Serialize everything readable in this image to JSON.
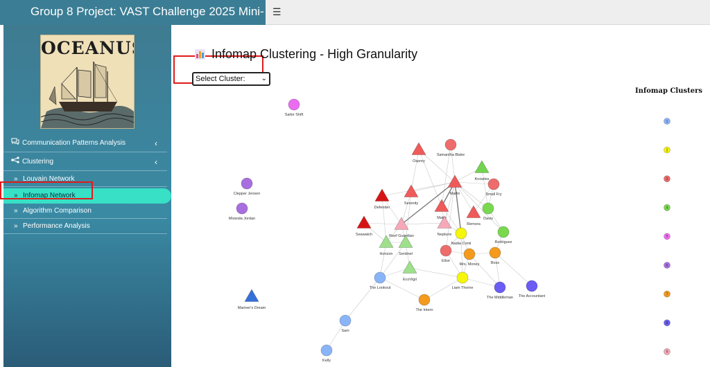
{
  "app": {
    "title": "Group 8 Project: VAST Challenge 2025 Mini-"
  },
  "logo": {
    "text": "OCEANUS"
  },
  "sidebar": {
    "items": [
      {
        "label": "Communication Patterns Analysis",
        "icon": "comments-icon"
      },
      {
        "label": "Clustering",
        "icon": "share-nodes-icon"
      }
    ],
    "subitems": [
      {
        "label": "Louvain Network"
      },
      {
        "label": "Infomap Network"
      },
      {
        "label": "Algorithm Comparison"
      },
      {
        "label": "Performance Analysis"
      }
    ]
  },
  "main": {
    "title": "Infomap Clustering - High Granularity",
    "select_label": "Select Cluster:"
  },
  "legend": {
    "title": "Infomap Clusters",
    "items": [
      {
        "label": "1",
        "color": "#8ab4f8"
      },
      {
        "label": "2",
        "color": "#f6f60a"
      },
      {
        "label": "3",
        "color": "#f16a6a"
      },
      {
        "label": "4",
        "color": "#79d94e"
      },
      {
        "label": "5",
        "color": "#f36bf5"
      },
      {
        "label": "6",
        "color": "#a86ee0"
      },
      {
        "label": "7",
        "color": "#f49a1c"
      },
      {
        "label": "8",
        "color": "#6a5cf5"
      },
      {
        "label": "9",
        "color": "#f7a8b8"
      }
    ]
  },
  "network": {
    "nodes": [
      {
        "id": "Sailor Shift",
        "shape": "circle",
        "color": "#ea6cf0"
      },
      {
        "id": "Clepper Jensen",
        "shape": "circle",
        "color": "#a86ee0"
      },
      {
        "id": "Miranda Jordan",
        "shape": "circle",
        "color": "#a86ee0"
      },
      {
        "id": "Mariner's Dream",
        "shape": "triangle",
        "color": "#3570d8"
      },
      {
        "id": "Osprey",
        "shape": "triangle",
        "color": "#ef5a5a"
      },
      {
        "id": "Samantha Blake",
        "shape": "circle",
        "color": "#ef6c6c"
      },
      {
        "id": "Knowles",
        "shape": "triangle",
        "color": "#73d44e"
      },
      {
        "id": "Small Fry",
        "shape": "circle",
        "color": "#ef6c6c"
      },
      {
        "id": "Mako",
        "shape": "triangle",
        "color": "#ef5a5a"
      },
      {
        "id": "Defender",
        "shape": "triangle",
        "color": "#d71414"
      },
      {
        "id": "Serenity",
        "shape": "triangle",
        "color": "#ef5a5a"
      },
      {
        "id": "Davis",
        "shape": "circle",
        "color": "#79d94e"
      },
      {
        "id": "Remora",
        "shape": "triangle",
        "color": "#ef5a5a"
      },
      {
        "id": "Seawatch",
        "shape": "triangle",
        "color": "#d71414"
      },
      {
        "id": "Reef Guardian",
        "shape": "triangle",
        "color": "#f7a8b8"
      },
      {
        "id": "Neptune",
        "shape": "triangle",
        "color": "#f7a8b8"
      },
      {
        "id": "Nadia Conti",
        "shape": "circle",
        "color": "#f6f60a"
      },
      {
        "id": "Rodriguez",
        "shape": "circle",
        "color": "#79d94e"
      },
      {
        "id": "Horizon",
        "shape": "triangle",
        "color": "#9ee08c"
      },
      {
        "id": "Sentinel",
        "shape": "triangle",
        "color": "#9ee08c"
      },
      {
        "id": "Elise",
        "shape": "circle",
        "color": "#ef6c6c"
      },
      {
        "id": "Mrs. Money",
        "shape": "circle",
        "color": "#f49a1c"
      },
      {
        "id": "Boss",
        "shape": "circle",
        "color": "#f49a1c"
      },
      {
        "id": "EcoVigil",
        "shape": "triangle",
        "color": "#9ee08c"
      },
      {
        "id": "The Lookout",
        "shape": "circle",
        "color": "#8ab4f8"
      },
      {
        "id": "Liam Thorne",
        "shape": "circle",
        "color": "#f6f60a"
      },
      {
        "id": "The Middleman",
        "shape": "circle",
        "color": "#6a5cf5"
      },
      {
        "id": "The Accountant",
        "shape": "circle",
        "color": "#6a5cf5"
      },
      {
        "id": "The Intern",
        "shape": "circle",
        "color": "#f49a1c"
      },
      {
        "id": "Sam",
        "shape": "circle",
        "color": "#8ab4f8"
      },
      {
        "id": "Kelly",
        "shape": "circle",
        "color": "#8ab4f8"
      }
    ],
    "hub": {
      "id": "Marlin",
      "shape": "triangle",
      "color": "#ef5a5a"
    }
  }
}
